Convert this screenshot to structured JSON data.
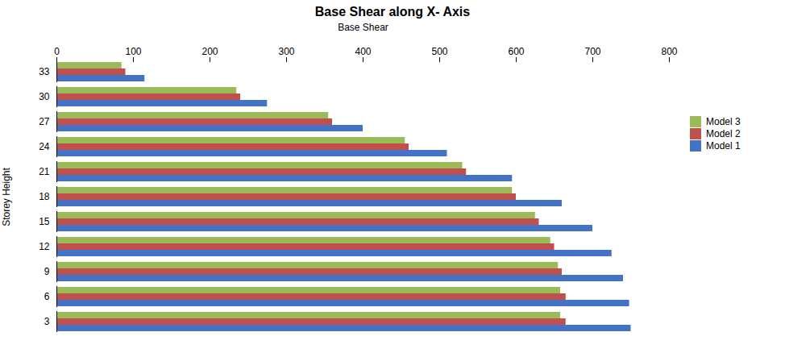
{
  "chart_data": {
    "type": "bar",
    "orientation": "horizontal",
    "title": "Base Shear along X- Axis",
    "xlabel": "Base Shear",
    "ylabel": "Storey Height",
    "categories": [
      3,
      6,
      9,
      12,
      15,
      18,
      21,
      24,
      27,
      30,
      33
    ],
    "series": [
      {
        "name": "Model 1",
        "color": "#4472C4",
        "values": [
          750,
          748,
          740,
          725,
          700,
          660,
          595,
          510,
          400,
          275,
          115
        ]
      },
      {
        "name": "Model 2",
        "color": "#C0504D",
        "values": [
          665,
          665,
          660,
          650,
          630,
          600,
          535,
          460,
          360,
          240,
          90
        ]
      },
      {
        "name": "Model 3",
        "color": "#9BBB59",
        "values": [
          658,
          658,
          655,
          645,
          625,
          595,
          530,
          455,
          355,
          235,
          85
        ]
      }
    ],
    "xlim": [
      0,
      800
    ],
    "xticks": [
      0,
      100,
      200,
      300,
      400,
      500,
      600,
      700,
      800
    ],
    "legend": "right",
    "grid": false
  }
}
